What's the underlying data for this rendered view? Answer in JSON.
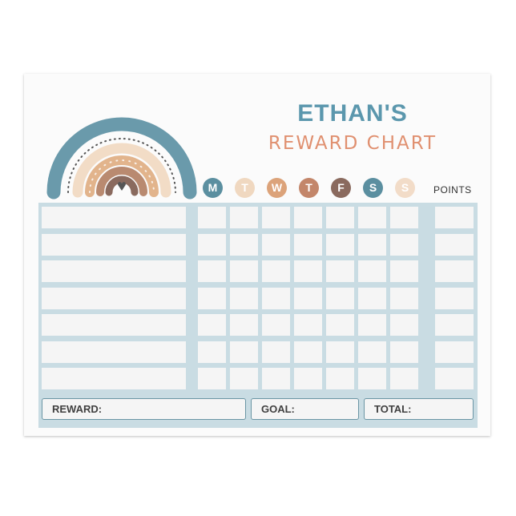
{
  "title": {
    "name": "ETHAN'S",
    "subtitle": "REWARD CHART"
  },
  "days": [
    {
      "label": "M",
      "color": "#5b8fa0"
    },
    {
      "label": "T",
      "color": "#f0d8c0"
    },
    {
      "label": "W",
      "color": "#dca37a"
    },
    {
      "label": "T",
      "color": "#c3866a"
    },
    {
      "label": "F",
      "color": "#8a6a5e"
    },
    {
      "label": "S",
      "color": "#5b8fa0"
    },
    {
      "label": "S",
      "color": "#f2dcc8"
    }
  ],
  "points_label": "POINTS",
  "rows": 7,
  "footer": {
    "reward": "REWARD:",
    "goal": "GOAL:",
    "total": "TOTAL:"
  },
  "colors": {
    "accent_blue": "#5b97ad",
    "accent_peach": "#e09070",
    "grid": "#c9dce3"
  }
}
